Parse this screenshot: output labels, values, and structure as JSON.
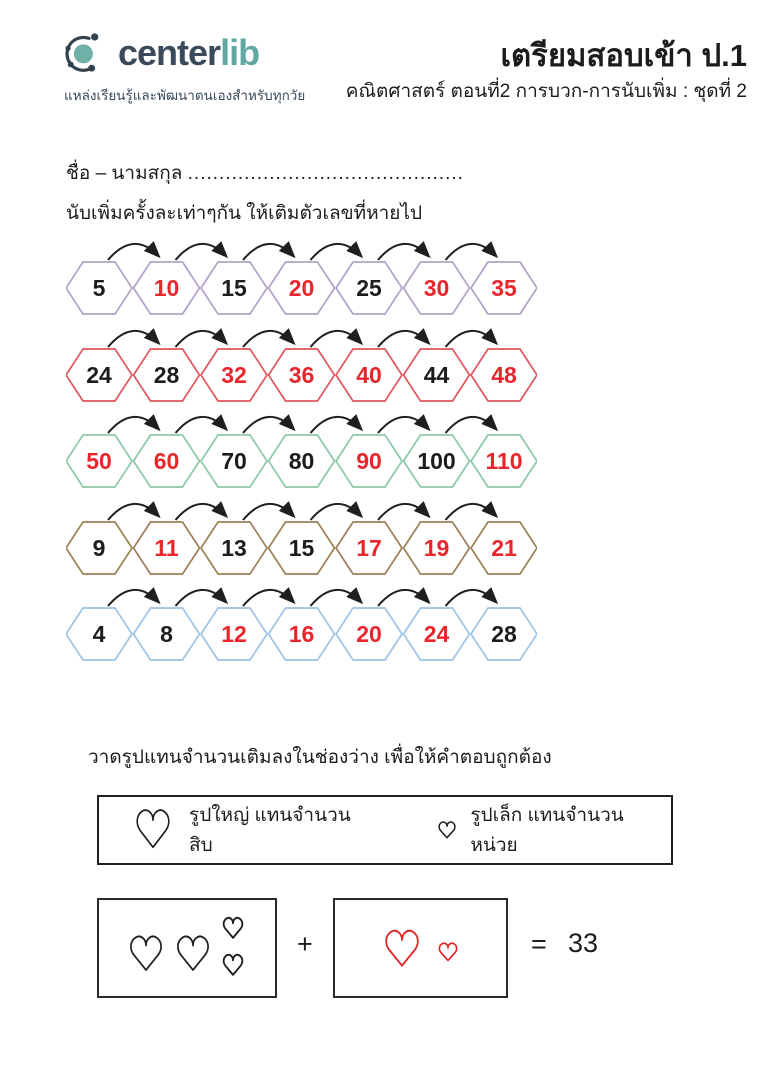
{
  "header": {
    "brand": {
      "part1": "center",
      "part2": "lib",
      "part1_color": "#3a4a5b",
      "part2_color": "#62a8a2",
      "tagline": "แหล่งเรียนรู้และพัฒนาตนเองสำหรับทุกวัย"
    },
    "title": "เตรียมสอบเข้า ป.1",
    "subtitle": "คณิตศาสตร์ ตอนที่2 การบวก-การนับเพิ่ม : ชุดที่ 2"
  },
  "name_line": {
    "label": "ชื่อ – นามสกุล",
    "dots": "............................................"
  },
  "exercise_counting": {
    "instruction": "นับเพิ่มครั้งละเท่าๆกัน ให้เติมตัวเลขที่หายไป",
    "number_colors": {
      "black": "#1c1c1c",
      "red": "#e8262b"
    },
    "arrow_color": "#1f1f1f",
    "rows": [
      {
        "border_color": "#b2a2c8",
        "values": [
          "5",
          "10",
          "15",
          "20",
          "25",
          "30",
          "35"
        ],
        "colors": [
          "black",
          "red",
          "black",
          "red",
          "black",
          "red",
          "red"
        ]
      },
      {
        "border_color": "#e0565e",
        "values": [
          "24",
          "28",
          "32",
          "36",
          "40",
          "44",
          "48"
        ],
        "colors": [
          "black",
          "black",
          "red",
          "red",
          "red",
          "black",
          "red"
        ]
      },
      {
        "border_color": "#8dc8a7",
        "values": [
          "50",
          "60",
          "70",
          "80",
          "90",
          "100",
          "110"
        ],
        "colors": [
          "red",
          "red",
          "black",
          "black",
          "red",
          "black",
          "red"
        ]
      },
      {
        "border_color": "#9c8058",
        "values": [
          "9",
          "11",
          "13",
          "15",
          "17",
          "19",
          "21"
        ],
        "colors": [
          "black",
          "red",
          "black",
          "black",
          "red",
          "red",
          "red"
        ]
      },
      {
        "border_color": "#9dc3e6",
        "values": [
          "4",
          "8",
          "12",
          "16",
          "20",
          "24",
          "28"
        ],
        "colors": [
          "black",
          "black",
          "red",
          "red",
          "red",
          "red",
          "black"
        ]
      }
    ]
  },
  "exercise_drawing": {
    "instruction": "วาดรูปแทนจำนวนเติมลงในช่องว่าง เพื่อให้คำตอบถูกต้อง",
    "legend": {
      "big_heart_label": "รูปใหญ่ แทนจำนวนสิบ",
      "small_heart_label": "รูปเล็ก แทนจำนวนหน่วย"
    },
    "equation": {
      "addend1": {
        "large_hearts": 2,
        "small_hearts": 2,
        "heart_color": "#1f1f1f"
      },
      "operator_plus": "+",
      "addend2": {
        "large_hearts": 1,
        "small_hearts": 1,
        "heart_color": "#e02427"
      },
      "operator_equals": "=",
      "answer": "33"
    }
  }
}
